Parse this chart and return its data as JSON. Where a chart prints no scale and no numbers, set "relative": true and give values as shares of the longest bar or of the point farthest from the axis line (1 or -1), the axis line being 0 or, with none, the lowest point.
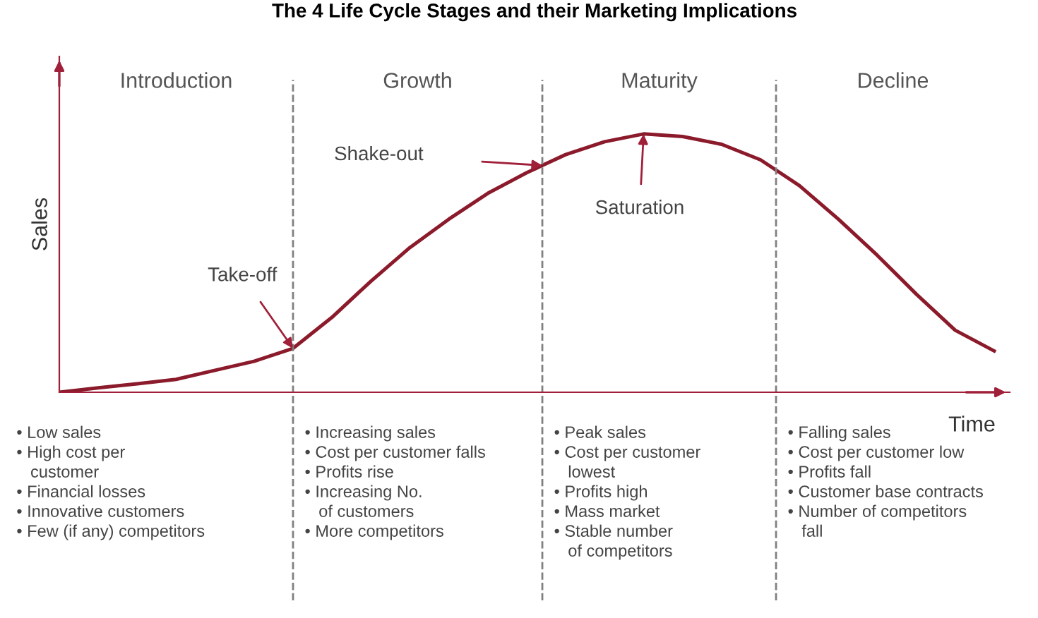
{
  "chart_data": {
    "type": "line",
    "title": "The 4 Life Cycle Stages and their Marketing Implications",
    "xlabel": "Time",
    "ylabel": "Sales",
    "relative": true,
    "categories": [
      null,
      null,
      null,
      null,
      null,
      null,
      null,
      null,
      null,
      null,
      null,
      null,
      null,
      null,
      null,
      null,
      null,
      null,
      null,
      null,
      null,
      null,
      null,
      null,
      null
    ],
    "series": [
      {
        "color": "#8b1a2b",
        "values": [
          0,
          0.017,
          0.033,
          0.05,
          0.085,
          0.12,
          0.17,
          0.29,
          0.43,
          0.56,
          0.67,
          0.77,
          0.85,
          0.92,
          0.97,
          1.0,
          0.99,
          0.96,
          0.9,
          0.8,
          0.67,
          0.53,
          0.38,
          0.24,
          0.16
        ]
      }
    ],
    "annotations": [
      "Introduction",
      "Growth",
      "Maturity",
      "Decline",
      "Take-off",
      "Shake-out",
      "Saturation",
      "• Low sales\n• High cost per\n   customer\n• Financial losses\n• Innovative customers\n• Few (if any) competitors",
      "• Increasing sales\n• Cost per customer falls\n• Profits rise\n• Increasing No.\n   of customers\n• More competitors",
      "• Peak sales\n• Cost per customer\n   lowest\n• Profits high\n• Mass market\n• Stable number\n   of competitors",
      "• Falling sales\n• Cost per customer low\n• Profits fall\n• Customer base contracts\n• Number of competitors\n   fall"
    ],
    "grid": false,
    "legend": false,
    "marker": "none",
    "line_style": "solid"
  }
}
